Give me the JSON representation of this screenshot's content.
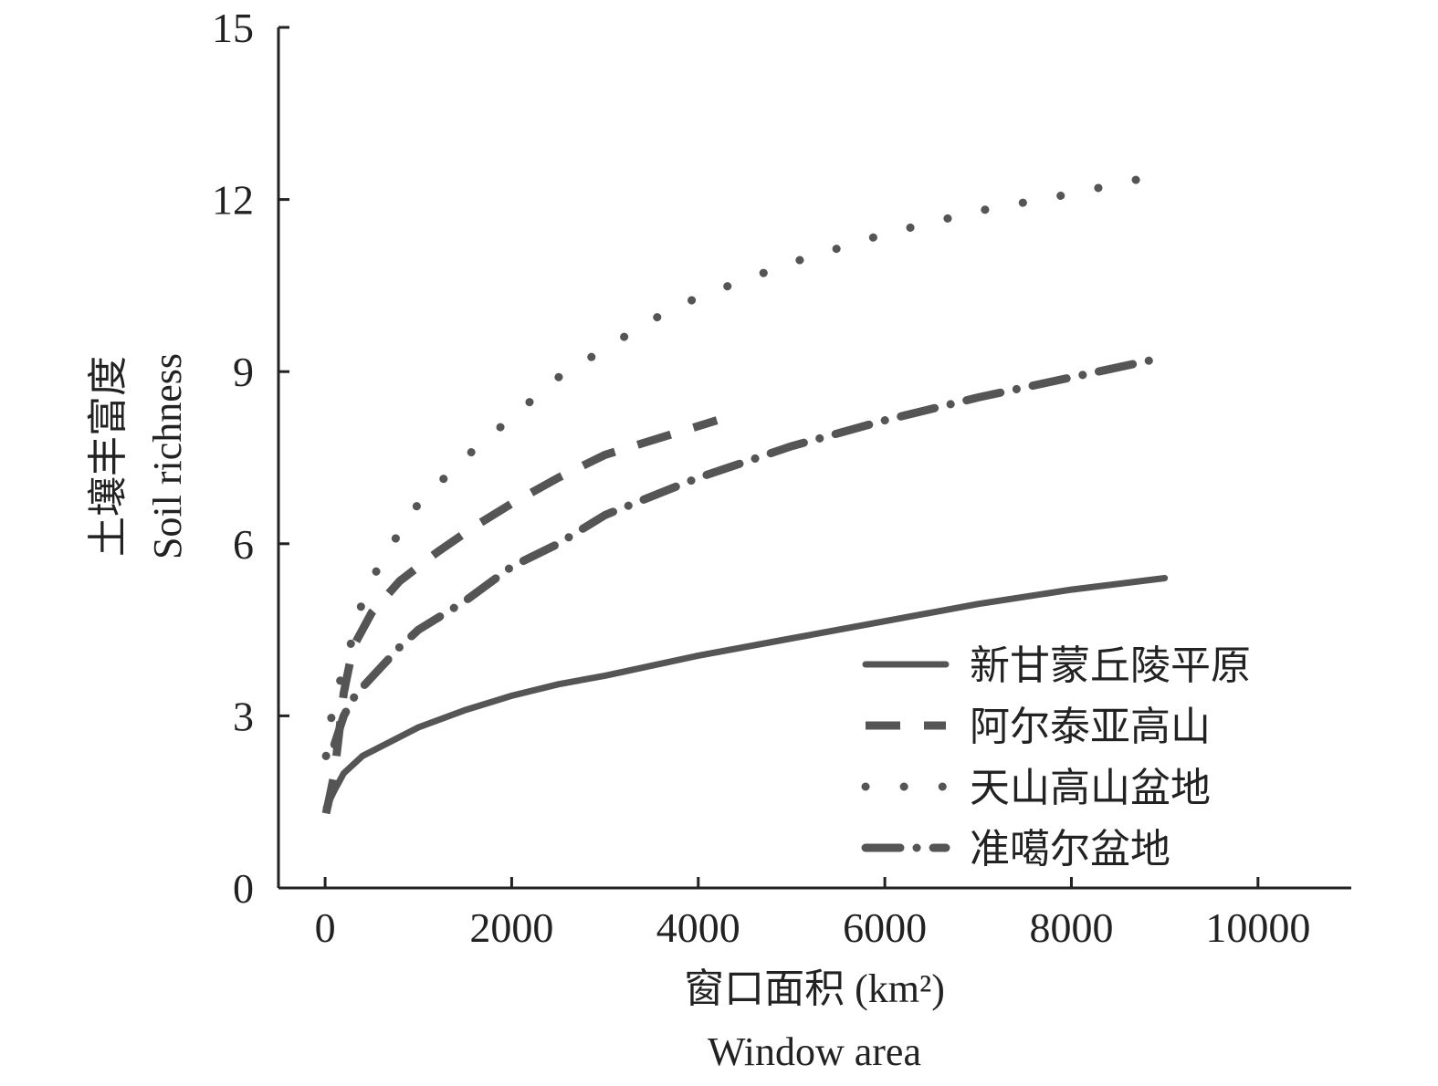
{
  "chart_data": {
    "type": "line",
    "title": "",
    "xlabel": [
      "窗口面积 (km²)",
      "Window area"
    ],
    "ylabel": [
      "土壤丰富度",
      "Soil richness"
    ],
    "xlim": [
      -500,
      11000
    ],
    "ylim": [
      0,
      15
    ],
    "xticks": [
      0,
      2000,
      4000,
      6000,
      8000,
      10000
    ],
    "xtick_labels": [
      "0",
      "2000",
      "4000",
      "6000",
      "8000",
      "10000"
    ],
    "yticks": [
      0,
      3,
      6,
      9,
      12,
      15
    ],
    "ytick_labels": [
      "0",
      "3",
      "6",
      "9",
      "12",
      "15"
    ],
    "grid": false,
    "legend_position": "bottom-right",
    "line_color": "#555555",
    "series": [
      {
        "name": "新甘蒙丘陵平原",
        "style": "solid",
        "x": [
          10,
          100,
          200,
          400,
          700,
          1000,
          1500,
          2000,
          2500,
          3000,
          4000,
          5000,
          6000,
          7000,
          8000,
          9000
        ],
        "y": [
          1.4,
          1.7,
          2.0,
          2.3,
          2.55,
          2.8,
          3.1,
          3.35,
          3.55,
          3.7,
          4.05,
          4.35,
          4.65,
          4.95,
          5.2,
          5.4
        ]
      },
      {
        "name": "阿尔泰亚高山",
        "style": "dashed",
        "x": [
          10,
          50,
          100,
          200,
          300,
          500,
          800,
          1200,
          1600,
          2000,
          2500,
          3000,
          4000,
          4200
        ],
        "y": [
          1.3,
          1.6,
          2.0,
          3.4,
          4.2,
          4.8,
          5.35,
          5.85,
          6.3,
          6.7,
          7.15,
          7.55,
          8.05,
          8.15
        ]
      },
      {
        "name": "天山高山盆地",
        "style": "dotted",
        "x": [
          10,
          50,
          100,
          200,
          300,
          400,
          600,
          800,
          1000,
          1500,
          2000,
          2500,
          3000,
          3500,
          4000,
          4500,
          5000,
          6000,
          7000,
          8000,
          9000
        ],
        "y": [
          2.3,
          2.8,
          3.3,
          3.8,
          4.4,
          5.0,
          5.7,
          6.2,
          6.7,
          7.5,
          8.2,
          8.9,
          9.4,
          9.9,
          10.3,
          10.6,
          10.9,
          11.4,
          11.8,
          12.1,
          12.45
        ]
      },
      {
        "name": "准噶尔盆地",
        "style": "dashdot",
        "x": [
          100,
          200,
          300,
          400,
          600,
          800,
          1000,
          1500,
          2000,
          2500,
          3000,
          4000,
          5000,
          6000,
          7000,
          8000,
          9000
        ],
        "y": [
          2.5,
          3.0,
          3.3,
          3.5,
          3.85,
          4.2,
          4.5,
          5.0,
          5.6,
          6.0,
          6.5,
          7.15,
          7.7,
          8.15,
          8.55,
          8.9,
          9.25
        ]
      }
    ]
  }
}
